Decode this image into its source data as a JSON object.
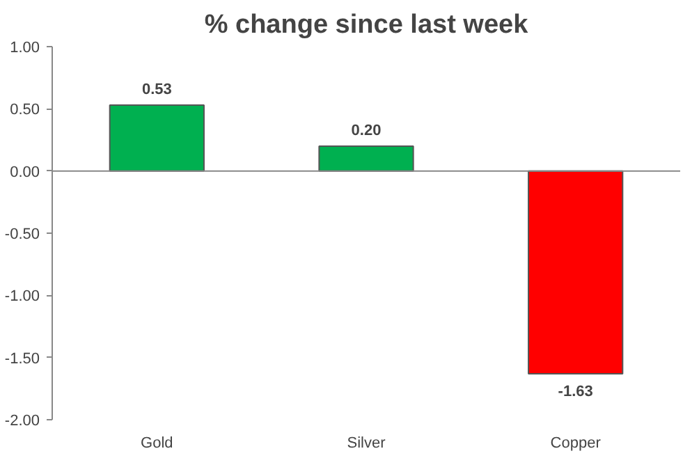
{
  "chart_data": {
    "type": "bar",
    "title": "% change since last week",
    "categories": [
      "Gold",
      "Silver",
      "Copper"
    ],
    "values": [
      0.53,
      0.2,
      -1.63
    ],
    "colors": [
      "#00b050",
      "#00b050",
      "#ff0000"
    ],
    "value_labels": [
      "0.53",
      "0.20",
      "-1.63"
    ],
    "ylim": [
      -2,
      1
    ],
    "yticks": [
      {
        "value": -2,
        "label": "-2.00"
      },
      {
        "value": -1.5,
        "label": "-1.50"
      },
      {
        "value": -1,
        "label": "-1.00"
      },
      {
        "value": -0.5,
        "label": "-0.50"
      },
      {
        "value": 0,
        "label": "0.00"
      },
      {
        "value": 0.5,
        "label": "0.50"
      },
      {
        "value": 1,
        "label": "1.00"
      }
    ],
    "ref_lines": [
      {
        "axis": "y",
        "value": 0,
        "color": "#888888"
      }
    ],
    "grid": false
  }
}
